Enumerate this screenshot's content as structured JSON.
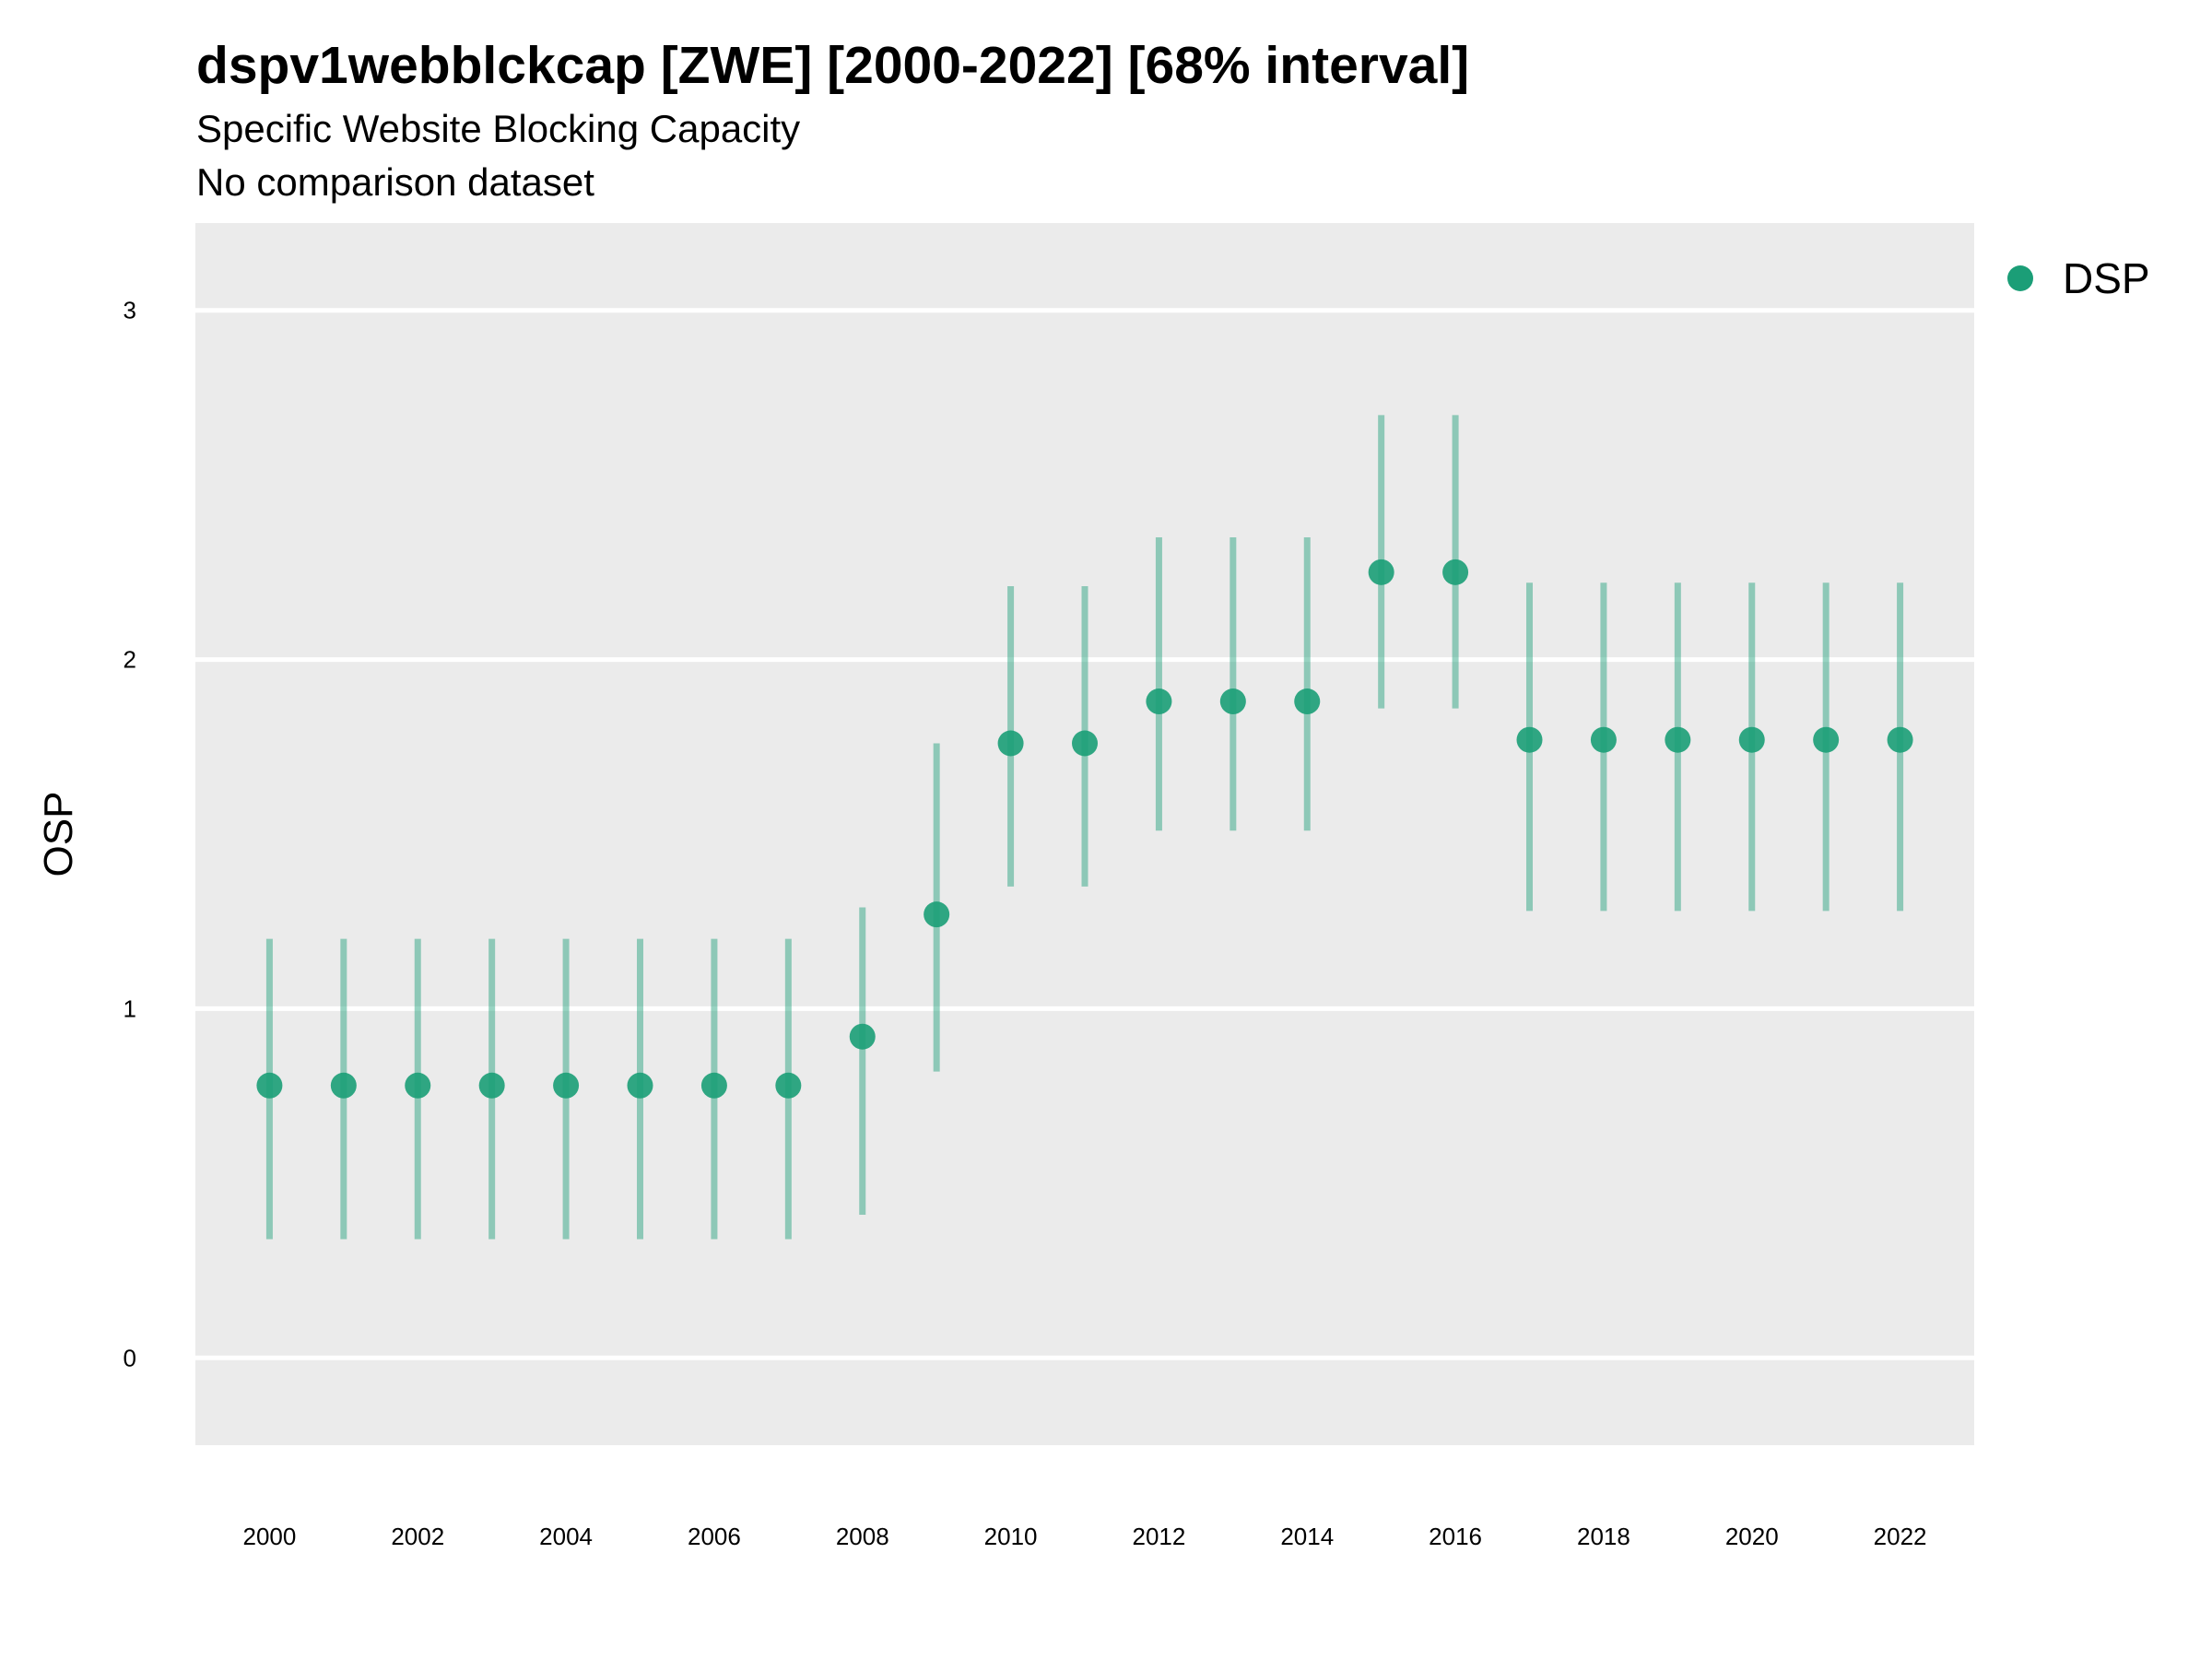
{
  "chart_data": {
    "type": "scatter",
    "title": "dspv1webblckcap [ZWE] [2000-2022] [68% interval]",
    "subtitle": "Specific Website Blocking Capacity",
    "caption": "No comparison dataset",
    "xlabel": "",
    "ylabel": "OSP",
    "xlim": [
      1999,
      2023
    ],
    "ylim": [
      -0.25,
      3.25
    ],
    "xticks": [
      2000,
      2002,
      2004,
      2006,
      2008,
      2010,
      2012,
      2014,
      2016,
      2018,
      2020,
      2022
    ],
    "yticks": [
      0,
      1,
      2,
      3
    ],
    "grid": "horizontal",
    "legend": "right",
    "series": [
      {
        "name": "DSP",
        "color": "#1b9e77",
        "x": [
          2000,
          2001,
          2002,
          2003,
          2004,
          2005,
          2006,
          2007,
          2008,
          2009,
          2010,
          2011,
          2012,
          2013,
          2014,
          2015,
          2016,
          2017,
          2018,
          2019,
          2020,
          2021,
          2022
        ],
        "y": [
          0.78,
          0.78,
          0.78,
          0.78,
          0.78,
          0.78,
          0.78,
          0.78,
          0.92,
          1.27,
          1.76,
          1.76,
          1.88,
          1.88,
          1.88,
          2.25,
          2.25,
          1.77,
          1.77,
          1.77,
          1.77,
          1.77,
          1.77
        ],
        "lower": [
          0.34,
          0.34,
          0.34,
          0.34,
          0.34,
          0.34,
          0.34,
          0.34,
          0.41,
          0.82,
          1.35,
          1.35,
          1.51,
          1.51,
          1.51,
          1.86,
          1.86,
          1.28,
          1.28,
          1.28,
          1.28,
          1.28,
          1.28
        ],
        "upper": [
          1.2,
          1.2,
          1.2,
          1.2,
          1.2,
          1.2,
          1.2,
          1.2,
          1.29,
          1.76,
          2.21,
          2.21,
          2.35,
          2.35,
          2.35,
          2.7,
          2.7,
          2.22,
          2.22,
          2.22,
          2.22,
          2.22,
          2.22
        ]
      }
    ]
  }
}
